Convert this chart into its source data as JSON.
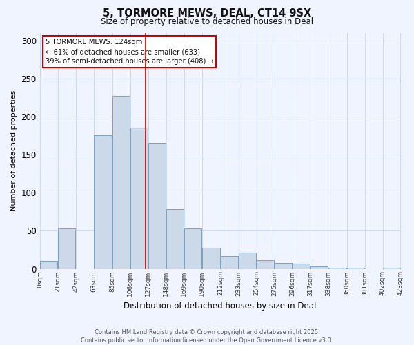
{
  "title": "5, TORMORE MEWS, DEAL, CT14 9SX",
  "subtitle": "Size of property relative to detached houses in Deal",
  "xlabel": "Distribution of detached houses by size in Deal",
  "ylabel": "Number of detached properties",
  "bar_color": "#ccd9e8",
  "bar_edge_color": "#7aa0c0",
  "bin_edges": [
    0,
    21,
    42,
    63,
    85,
    106,
    127,
    148,
    169,
    190,
    212,
    233,
    254,
    275,
    296,
    317,
    338,
    360,
    381,
    402,
    423
  ],
  "bar_heights": [
    10,
    53,
    0,
    175,
    227,
    185,
    165,
    78,
    53,
    28,
    17,
    21,
    11,
    8,
    7,
    3,
    1,
    1,
    0,
    1
  ],
  "tick_labels": [
    "0sqm",
    "21sqm",
    "42sqm",
    "63sqm",
    "85sqm",
    "106sqm",
    "127sqm",
    "148sqm",
    "169sqm",
    "190sqm",
    "212sqm",
    "233sqm",
    "254sqm",
    "275sqm",
    "296sqm",
    "317sqm",
    "338sqm",
    "360sqm",
    "381sqm",
    "402sqm",
    "423sqm"
  ],
  "vline_x": 124,
  "vline_color": "#cc0000",
  "ylim": [
    0,
    310
  ],
  "yticks": [
    0,
    50,
    100,
    150,
    200,
    250,
    300
  ],
  "annotation_line1": "5 TORMORE MEWS: 124sqm",
  "annotation_line2": "← 61% of detached houses are smaller (633)",
  "annotation_line3": "39% of semi-detached houses are larger (408) →",
  "footer_text": "Contains HM Land Registry data © Crown copyright and database right 2025.\nContains public sector information licensed under the Open Government Licence v3.0.",
  "background_color": "#f0f4ff",
  "grid_color": "#d0d8ee"
}
